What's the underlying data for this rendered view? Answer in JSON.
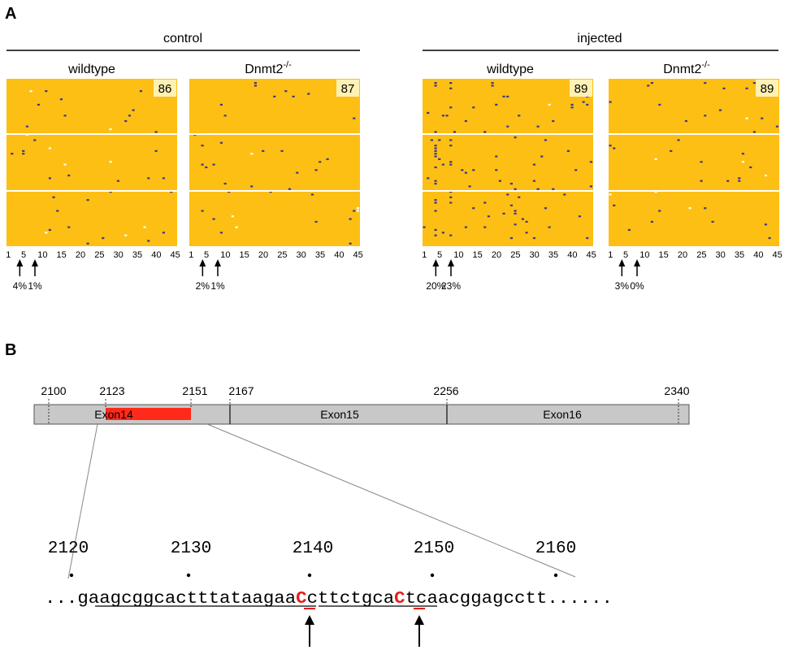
{
  "panel_a": {
    "letter": "A",
    "groups": [
      {
        "label": "control",
        "subs": [
          {
            "label": "wildtype",
            "box": "86",
            "sup": "",
            "pct": [
              "4%",
              "1%"
            ]
          },
          {
            "label": "Dnmt2",
            "box": "87",
            "sup": "-/-",
            "pct": [
              "2%",
              "1%"
            ]
          }
        ]
      },
      {
        "label": "injected",
        "subs": [
          {
            "label": "wildtype",
            "box": "89",
            "sup": "",
            "pct": [
              "20%",
              "23%"
            ]
          },
          {
            "label": "Dnmt2",
            "box": "89",
            "sup": "-/-",
            "pct": [
              "3%",
              "0%"
            ]
          }
        ]
      }
    ],
    "x_ticks": [
      "1",
      "5",
      "10",
      "15",
      "20",
      "25",
      "30",
      "35",
      "40",
      "45"
    ],
    "arrow_positions": [
      4,
      8
    ],
    "colors": {
      "background": "#fdbf14",
      "methylated": "#3b3a8a",
      "gap": "#fff1b3"
    }
  },
  "panel_b": {
    "letter": "B",
    "scale_labels": [
      "2100",
      "2123",
      "2151",
      "2167",
      "2256",
      "2340"
    ],
    "exons": [
      "Exon14",
      "Exon15",
      "Exon16"
    ],
    "seq_positions": [
      "2120",
      "2130",
      "2140",
      "2150",
      "2160"
    ],
    "seq_parts": [
      "...gaagcggcactttataagaa",
      "C",
      "cttctgca",
      "C",
      "tcaacggagcctt......"
    ],
    "colors": {
      "exon_bar": "#c8c8c8",
      "highlight": "#ff2a1a",
      "seq_red": "#e41e1e"
    }
  }
}
